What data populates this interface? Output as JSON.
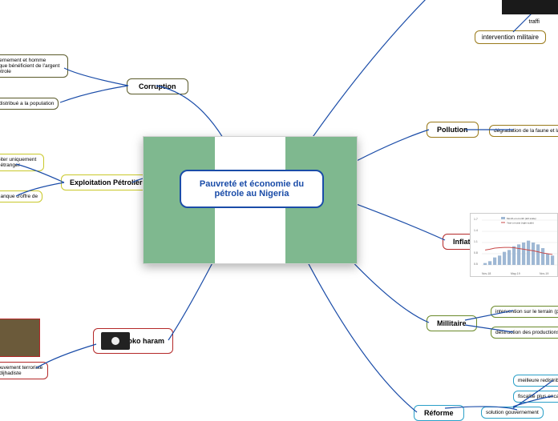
{
  "center": {
    "title": "Pauvreté et économie du pétrole au Nigeria"
  },
  "branches": {
    "corruption": {
      "label": "Corruption",
      "color": "#5a5a2a",
      "children": [
        "gouvernement et homme politique bénéficient de l'argent du pétrole",
        "rien distribué a la population"
      ]
    },
    "exploitation": {
      "label": "Exploitation Pétrolière",
      "color": "#c9c82a",
      "children": [
        "exploiter uniquement pays étranger",
        "un manque d'offre de"
      ]
    },
    "boko": {
      "label": "Boko haram",
      "color": "#b42828",
      "children": [
        "le mouvement terroriste ogie dijhadiste"
      ]
    },
    "pollution": {
      "label": "Pollution",
      "color": "#9a7a1a",
      "children": [
        "dégradation de la faune et la flore"
      ]
    },
    "inflation": {
      "label": "Inflation",
      "color": "#b42828"
    },
    "militaire": {
      "label": "Millitaire",
      "color": "#6a8a2a",
      "children": [
        "intervention sur le terrain (pirate)",
        "destruction des productions clandestines"
      ]
    },
    "reforme": {
      "label": "Réforme",
      "color": "#2aa0c8",
      "children": [
        "meilleure redistrib",
        "fiscalité plus encad",
        "solution gouvernement"
      ]
    },
    "top": {
      "traffic": "traffi",
      "intervention": "intervention militaire"
    }
  },
  "chart": {
    "type": "bar+line",
    "legend": [
      "Month-on-month (left scale)",
      "Year-on-year (right scale)"
    ],
    "bar_color": "#9fb8d4",
    "line_color": "#c84848",
    "grid_color": "#e0e0e0",
    "x_labels": [
      "Nov-18",
      "May-19",
      "Nov-19"
    ],
    "y_ticks": [
      0.5,
      0.8,
      1.1,
      1.4,
      1.7
    ],
    "bars": [
      0.55,
      0.6,
      0.7,
      0.75,
      0.85,
      0.9,
      1.0,
      1.05,
      1.1,
      1.15,
      1.1,
      1.05,
      0.95,
      0.8,
      0.75
    ],
    "line": [
      0.9,
      0.92,
      0.95,
      0.96,
      0.97,
      0.97,
      0.96,
      0.94,
      0.92,
      0.9,
      0.88,
      0.85,
      0.82,
      0.8,
      0.78
    ]
  },
  "edge_color": "#1a4ca8"
}
